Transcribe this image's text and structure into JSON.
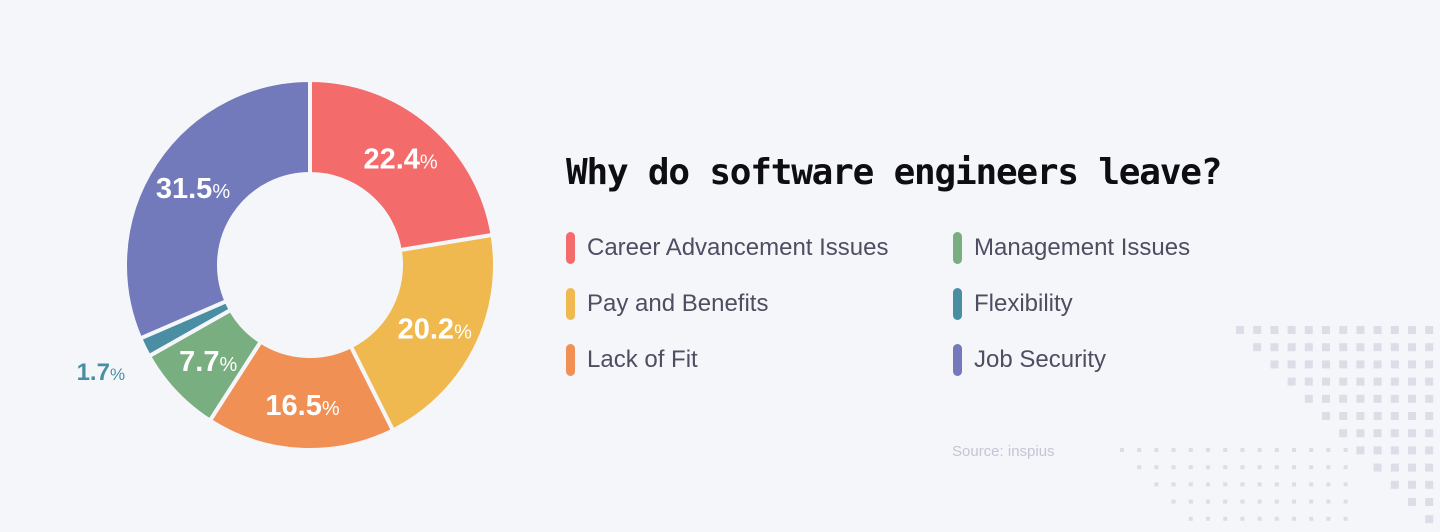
{
  "title": "Why do software engineers leave?",
  "source": "Source: inspius",
  "legend": [
    {
      "label": "Career Advancement Issues",
      "color": "#f46b6b"
    },
    {
      "label": "Pay and Benefits",
      "color": "#f0b94f"
    },
    {
      "label": "Lack of Fit",
      "color": "#f09055"
    },
    {
      "label": "Management Issues",
      "color": "#78ae80"
    },
    {
      "label": "Flexibility",
      "color": "#4a8ea4"
    },
    {
      "label": "Job Security",
      "color": "#727abb"
    }
  ],
  "chart_data": {
    "type": "pie",
    "variant": "donut",
    "title": "Why do software engineers leave?",
    "categories": [
      "Career Advancement Issues",
      "Pay and Benefits",
      "Lack of Fit",
      "Management Issues",
      "Flexibility",
      "Job Security"
    ],
    "values": [
      22.4,
      20.2,
      16.5,
      7.7,
      1.7,
      31.5
    ],
    "labels": [
      "22.4%",
      "20.2%",
      "16.5%",
      "7.7%",
      "1.7%",
      "31.5%"
    ],
    "colors": [
      "#f46b6b",
      "#f0b94f",
      "#f09055",
      "#78ae80",
      "#4a8ea4",
      "#727abb"
    ],
    "start_angle": "12 o'clock",
    "direction": "clockwise",
    "legend_position": "right",
    "source": "Source: inspius"
  }
}
